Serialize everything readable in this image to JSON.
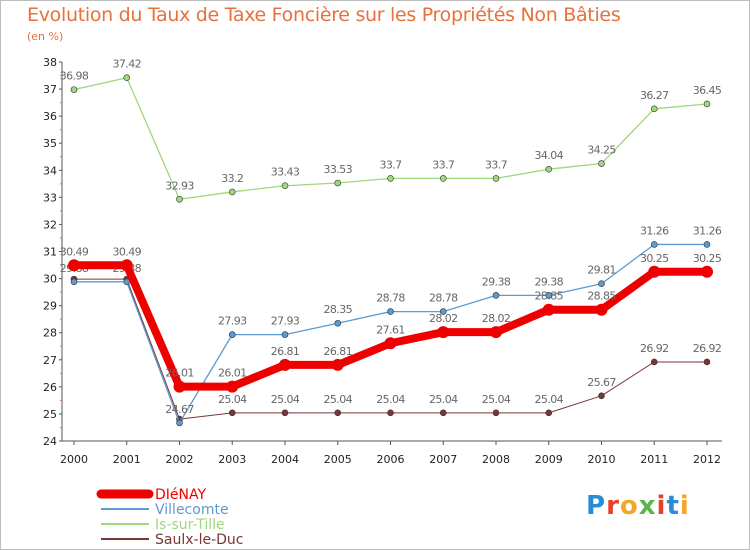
{
  "title": "Evolution du Taux de Taxe Foncière sur les Propriétés Non Bâties",
  "unit_label": "(en %)",
  "logo": {
    "letters": [
      "P",
      "r",
      "o",
      "x",
      "i",
      "t",
      "i"
    ],
    "colors": [
      "#2b8cd6",
      "#e8412b",
      "#f5a623",
      "#5ab54a",
      "#e8412b",
      "#2b8cd6",
      "#f5a623"
    ]
  },
  "chart_data": {
    "type": "line",
    "title": "Evolution du Taux de Taxe Foncière sur les Propriétés Non Bâties",
    "ylabel": "(en %)",
    "xlabel": "",
    "ylim": [
      24,
      38
    ],
    "yticks": [
      "24",
      "25",
      "26",
      "27",
      "28",
      "29",
      "30",
      "31",
      "32",
      "33",
      "34",
      "35",
      "36",
      "37",
      "38"
    ],
    "x": [
      "2000",
      "2001",
      "2002",
      "2003",
      "2004",
      "2005",
      "2006",
      "2007",
      "2008",
      "2009",
      "2010",
      "2011",
      "2012"
    ],
    "series": [
      {
        "name": "Saulx-le-Duc",
        "color": "#7a3636",
        "width": 1,
        "values": [
          29.98,
          29.98,
          24.81,
          25.04,
          25.04,
          25.04,
          25.04,
          25.04,
          25.04,
          25.04,
          25.67,
          26.92,
          26.92
        ],
        "labels": [
          "",
          "",
          "",
          "25.04",
          "25.04",
          "25.04",
          "25.04",
          "25.04",
          "25.04",
          "25.04",
          "25.67",
          "26.92",
          "26.92"
        ]
      },
      {
        "name": "Is-sur-Tille",
        "color": "#9ed77c",
        "width": 1.3,
        "values": [
          36.98,
          37.42,
          32.93,
          33.2,
          33.43,
          33.53,
          33.7,
          33.7,
          33.7,
          34.04,
          34.25,
          36.27,
          36.45
        ],
        "labels": [
          "36.98",
          "37.42",
          "32.93",
          "33.2",
          "33.43",
          "33.53",
          "33.7",
          "33.7",
          "33.7",
          "34.04",
          "34.25",
          "36.27",
          "36.45"
        ]
      },
      {
        "name": "Villecomte",
        "color": "#5b9bd1",
        "width": 1.3,
        "values": [
          29.88,
          29.88,
          24.67,
          27.93,
          27.93,
          28.35,
          28.78,
          28.78,
          29.38,
          29.38,
          29.81,
          31.26,
          31.26
        ],
        "labels": [
          "29.88",
          "29.88",
          "24.67",
          "27.93",
          "27.93",
          "28.35",
          "28.78",
          "28.78",
          "29.38",
          "29.38",
          "29.81",
          "31.26",
          "31.26"
        ]
      },
      {
        "name": "DIéNAY",
        "color": "#ee0000",
        "width": 8,
        "values": [
          30.49,
          30.49,
          26.01,
          26.01,
          26.81,
          26.81,
          27.61,
          28.02,
          28.02,
          28.85,
          28.85,
          30.25,
          30.25
        ],
        "labels": [
          "30.49",
          "30.49",
          "26.01",
          "26.01",
          "26.81",
          "26.81",
          "27.61",
          "28.02",
          "28.02",
          "28.85",
          "28.85",
          "30.25",
          "30.25"
        ]
      }
    ],
    "legend": [
      {
        "name": "DIéNAY",
        "color": "#ee0000"
      },
      {
        "name": "Villecomte",
        "color": "#5b9bd1"
      },
      {
        "name": "Is-sur-Tille",
        "color": "#9ed77c"
      },
      {
        "name": "Saulx-le-Duc",
        "color": "#7a3636"
      }
    ],
    "legend_position": "bottom-left",
    "grid": false
  }
}
